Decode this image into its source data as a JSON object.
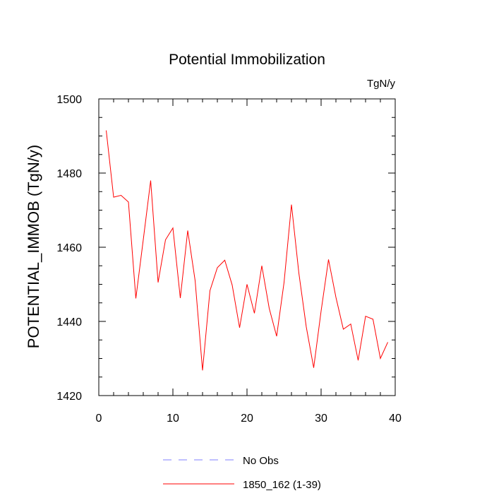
{
  "chart_data": {
    "type": "line",
    "title": "Potential Immobilization",
    "units": "TgN/y",
    "xlabel": "",
    "ylabel": "POTENTIAL_IMMOB  (TgN/y)",
    "xlim": [
      0,
      40
    ],
    "ylim": [
      1420,
      1500
    ],
    "xticks": [
      0,
      10,
      20,
      30,
      40
    ],
    "yticks": [
      1420,
      1440,
      1460,
      1480,
      1500
    ],
    "grid": false,
    "legend_position": "bottom",
    "series": [
      {
        "name": "No Obs",
        "style": "dashed",
        "color": "#8080ff",
        "x": [],
        "values": []
      },
      {
        "name": "1850_162 (1-39)",
        "style": "solid",
        "color": "#ff0000",
        "x": [
          1,
          2,
          3,
          4,
          5,
          6,
          7,
          8,
          9,
          10,
          11,
          12,
          13,
          14,
          15,
          16,
          17,
          18,
          19,
          20,
          21,
          22,
          23,
          24,
          25,
          26,
          27,
          28,
          29,
          30,
          31,
          32,
          33,
          34,
          35,
          36,
          37,
          38,
          39
        ],
        "values": [
          1491.5,
          1473.5,
          1474.0,
          1472.2,
          1446.2,
          1462.0,
          1478.0,
          1450.5,
          1462.0,
          1465.2,
          1446.3,
          1464.5,
          1451.0,
          1426.8,
          1448.3,
          1454.5,
          1456.5,
          1449.8,
          1438.3,
          1450.0,
          1442.2,
          1455.0,
          1443.5,
          1436.0,
          1450.5,
          1471.5,
          1453.0,
          1438.5,
          1427.5,
          1442.8,
          1456.7,
          1446.5,
          1437.9,
          1439.3,
          1429.5,
          1441.4,
          1440.6,
          1430.0,
          1434.4
        ]
      }
    ]
  }
}
